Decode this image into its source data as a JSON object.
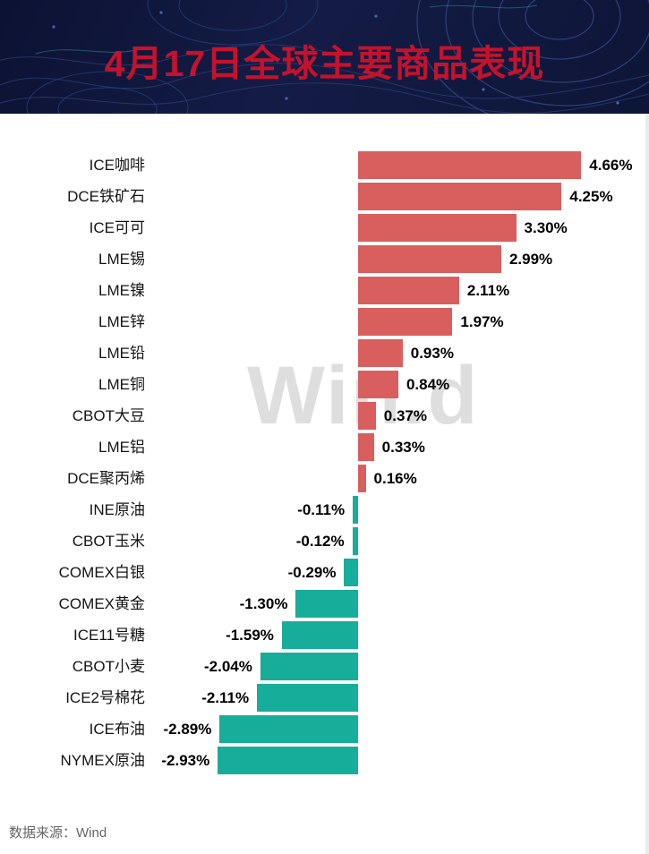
{
  "header": {
    "title": "4月17日全球主要商品表现"
  },
  "watermark": {
    "text": "Win.d"
  },
  "footer": {
    "source": "数据来源：Wind"
  },
  "chart_data": {
    "type": "bar",
    "orientation": "horizontal",
    "title": "4月17日全球主要商品表现",
    "categories": [
      "ICE咖啡",
      "DCE铁矿石",
      "ICE可可",
      "LME锡",
      "LME镍",
      "LME锌",
      "LME铅",
      "LME铜",
      "CBOT大豆",
      "LME铝",
      "DCE聚丙烯",
      "INE原油",
      "CBOT玉米",
      "COMEX白银",
      "COMEX黄金",
      "ICE11号糖",
      "CBOT小麦",
      "ICE2号棉花",
      "ICE布油",
      "NYMEX原油"
    ],
    "values": [
      4.66,
      4.25,
      3.3,
      2.99,
      2.11,
      1.97,
      0.93,
      0.84,
      0.37,
      0.33,
      0.16,
      -0.11,
      -0.12,
      -0.29,
      -1.3,
      -1.59,
      -2.04,
      -2.11,
      -2.89,
      -2.93
    ],
    "value_labels": [
      "4.66%",
      "4.25%",
      "3.30%",
      "2.99%",
      "2.11%",
      "1.97%",
      "0.93%",
      "0.84%",
      "0.37%",
      "0.33%",
      "0.16%",
      "-0.11%",
      "-0.12%",
      "-0.29%",
      "-1.30%",
      "-1.59%",
      "-2.04%",
      "-2.11%",
      "-2.89%",
      "-2.93%"
    ],
    "unit": "%",
    "colors": {
      "positive": "#d85f5e",
      "negative": "#17ad9b"
    },
    "xlim": [
      -3.5,
      5.2
    ],
    "grid": false,
    "legend": false,
    "source": "Wind"
  }
}
